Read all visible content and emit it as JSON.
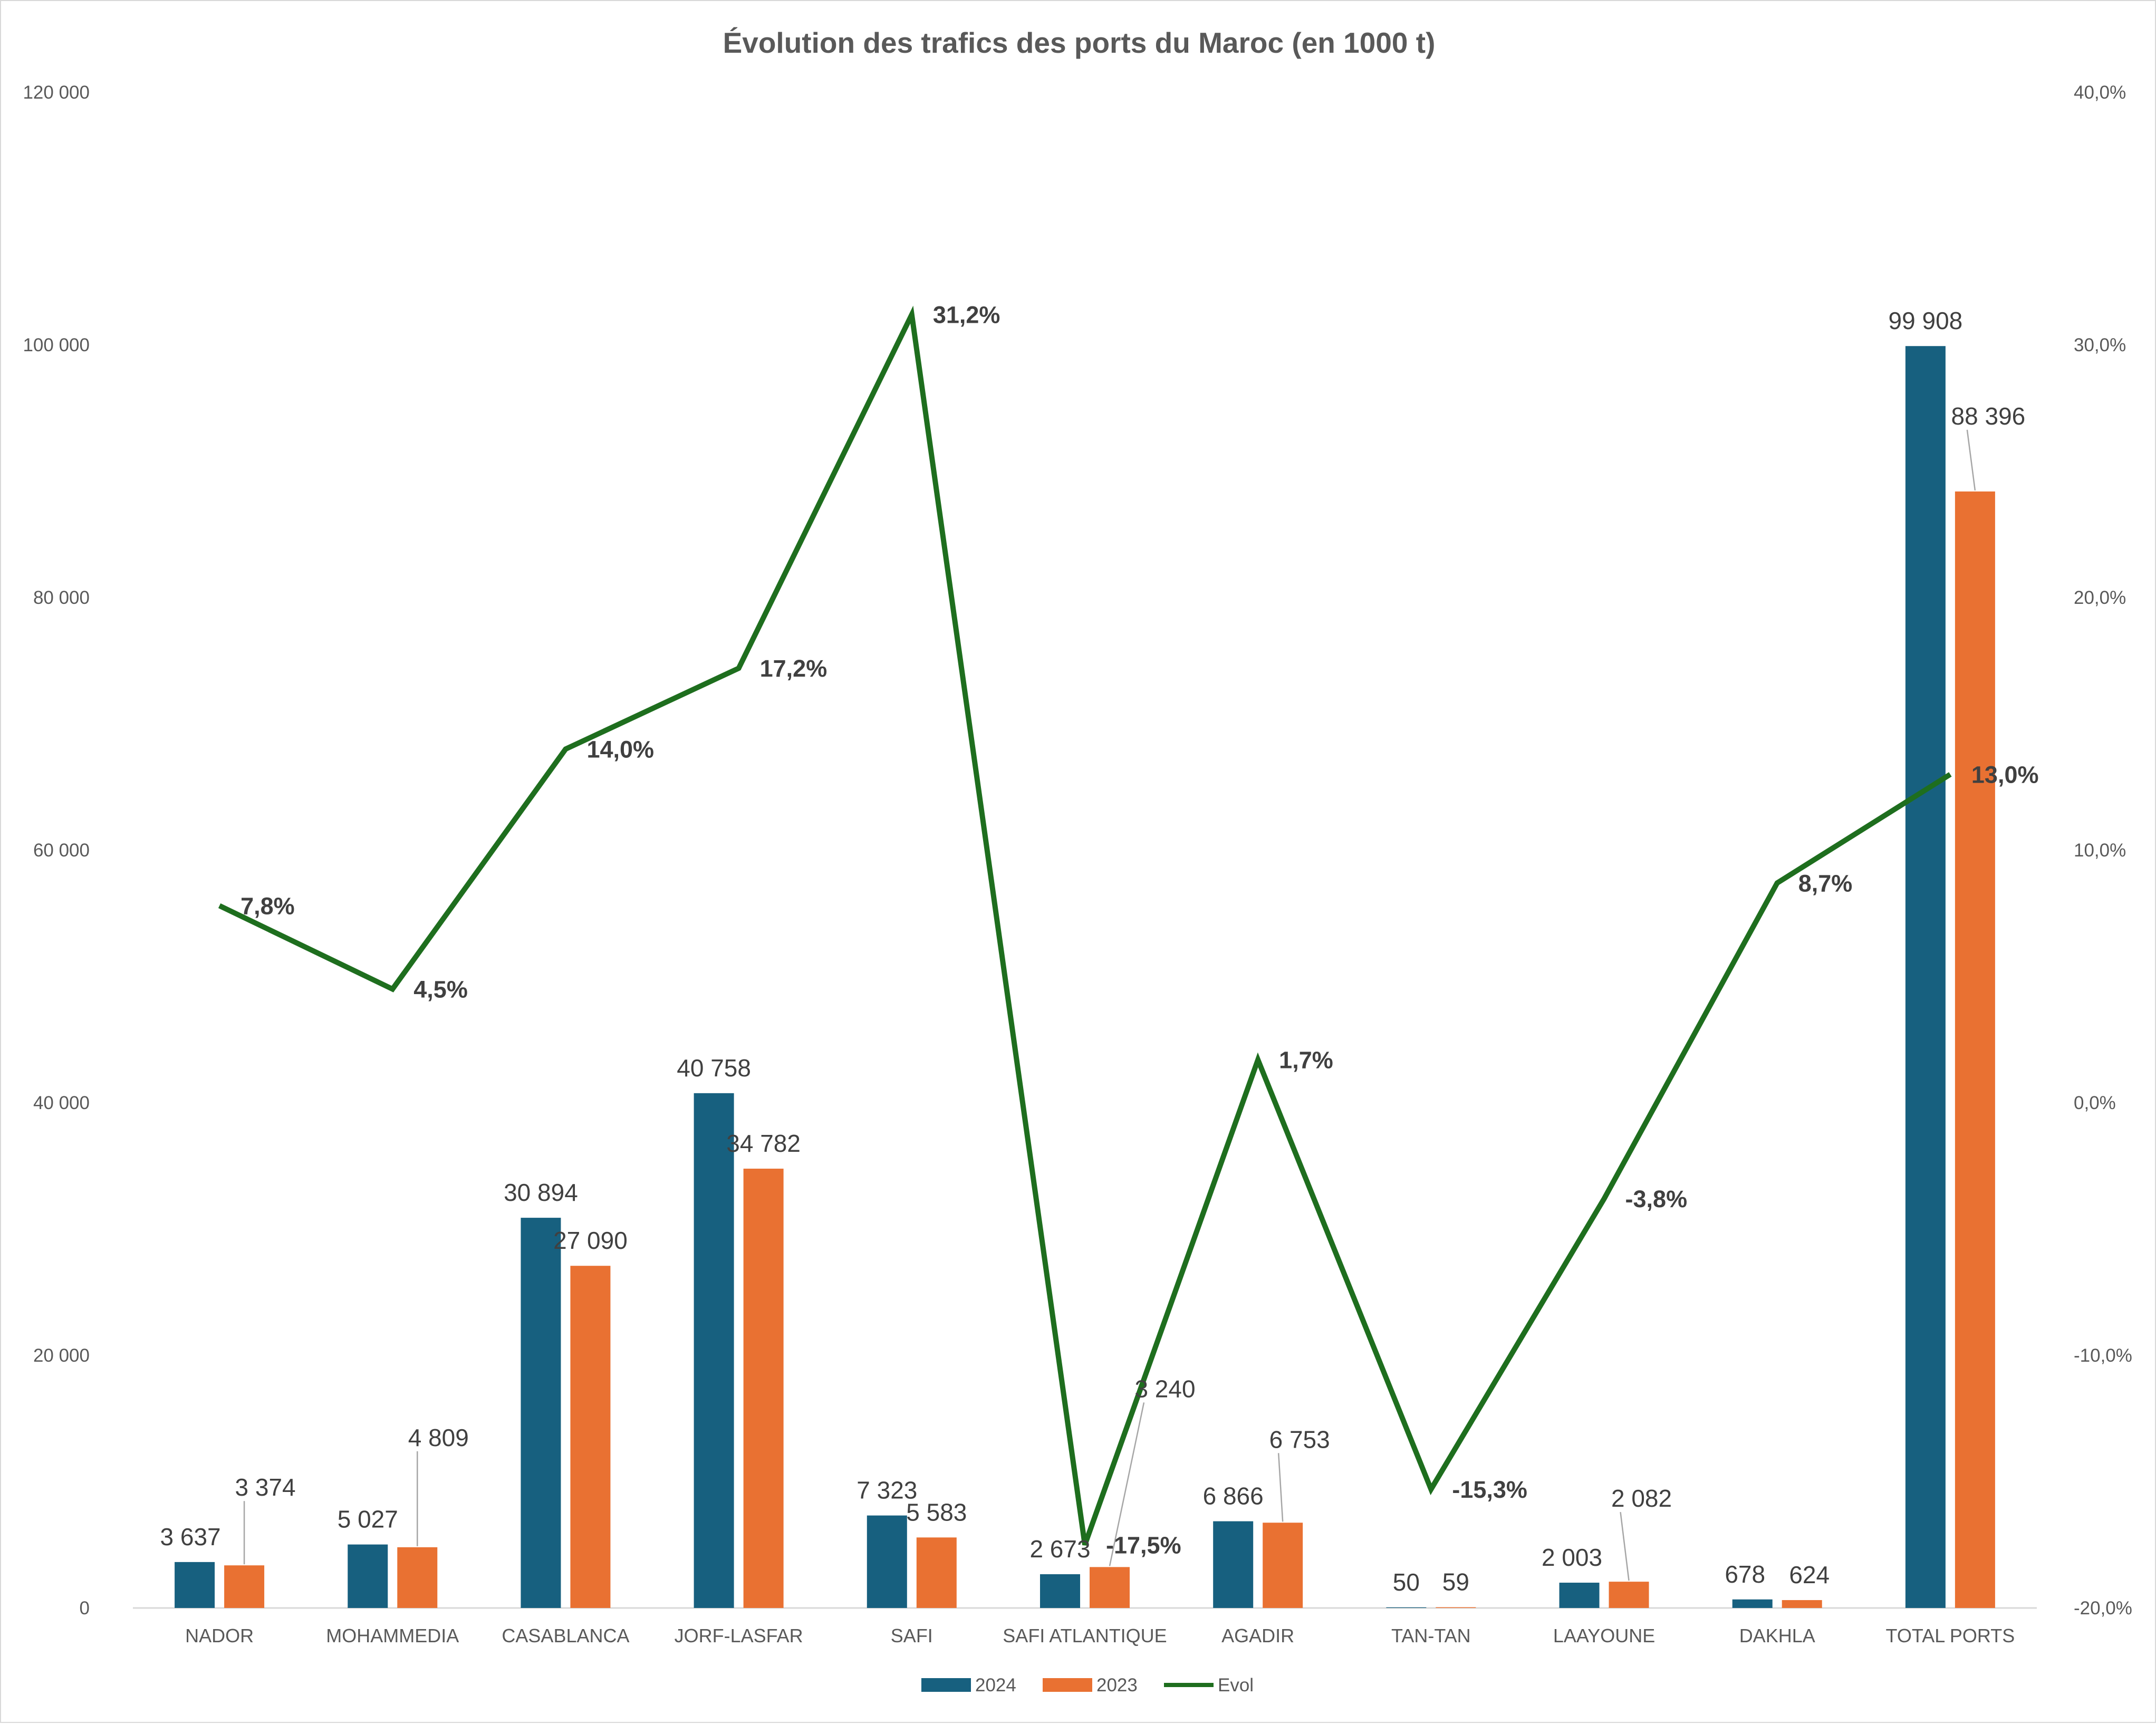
{
  "chart_data": {
    "type": "bar",
    "title": "Évolution des trafics des ports du Maroc (en 1000 t)",
    "categories": [
      "NADOR",
      "MOHAMMEDIA",
      "CASABLANCA",
      "JORF-LASFAR",
      "SAFI",
      "SAFI ATLANTIQUE",
      "AGADIR",
      "TAN-TAN",
      "LAAYOUNE",
      "DAKHLA",
      "TOTAL PORTS"
    ],
    "series": [
      {
        "name": "2024",
        "kind": "bar",
        "axis": "left",
        "color": "#17607f",
        "values": [
          3637,
          5027,
          30894,
          40758,
          7323,
          2673,
          6866,
          50,
          2003,
          678,
          99908
        ],
        "labels": [
          "3 637",
          "5 027",
          "30 894",
          "40 758",
          "7 323",
          "2 673",
          "6 866",
          "50",
          "2 003",
          "678",
          "99 908"
        ]
      },
      {
        "name": "2023",
        "kind": "bar",
        "axis": "left",
        "color": "#e97132",
        "values": [
          3374,
          4809,
          27090,
          34782,
          5583,
          3240,
          6753,
          59,
          2082,
          624,
          88396
        ],
        "labels": [
          "3 374",
          "4 809",
          "27 090",
          "34 782",
          "5 583",
          "3 240",
          "6 753",
          "59",
          "2 082",
          "624",
          "88 396"
        ]
      },
      {
        "name": "Evol",
        "kind": "line",
        "axis": "right",
        "color": "#1e6e1e",
        "values": [
          7.8,
          4.5,
          14.0,
          17.2,
          31.2,
          -17.5,
          1.7,
          -15.3,
          -3.8,
          8.7,
          13.0
        ],
        "labels": [
          "7,8%",
          "4,5%",
          "14,0%",
          "17,2%",
          "31,2%",
          "-17,5%",
          "1,7%",
          "-15,3%",
          "-3,8%",
          "8,7%",
          "13,0%"
        ]
      }
    ],
    "left_axis": {
      "ylim": [
        0,
        120000
      ],
      "ticks": [
        0,
        20000,
        40000,
        60000,
        80000,
        100000,
        120000
      ],
      "tick_labels": [
        "0",
        "20 000",
        "40 000",
        "60 000",
        "80 000",
        "100 000",
        "120 000"
      ]
    },
    "right_axis": {
      "ylim": [
        -20,
        40
      ],
      "ticks": [
        -20,
        -10,
        0,
        10,
        20,
        30,
        40
      ],
      "tick_labels": [
        "-20,0%",
        "-10,0%",
        "0,0%",
        "10,0%",
        "20,0%",
        "30,0%",
        "40,0%"
      ]
    },
    "grid": false,
    "legend_position": "bottom"
  }
}
